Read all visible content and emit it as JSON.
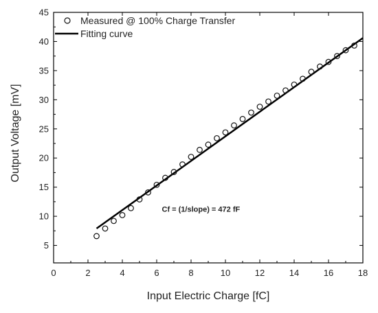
{
  "chart_data": {
    "type": "scatter",
    "xlabel": "Input Electric Charge [fC]",
    "ylabel": "Output Voltage [mV]",
    "xlim": [
      0,
      18
    ],
    "ylim": [
      2,
      45
    ],
    "xticks": [
      0,
      2,
      4,
      6,
      8,
      10,
      12,
      14,
      16,
      18
    ],
    "yticks": [
      5,
      10,
      15,
      20,
      25,
      30,
      35,
      40,
      45
    ],
    "grid": false,
    "legend_position": "top-left",
    "series": [
      {
        "name": "Measured @ 100% Charge Transfer",
        "marker": "open-circle",
        "x": [
          2.5,
          3.0,
          3.5,
          4.0,
          4.5,
          5.0,
          5.5,
          6.0,
          6.5,
          7.0,
          7.5,
          8.0,
          8.5,
          9.0,
          9.5,
          10.0,
          10.5,
          11.0,
          11.5,
          12.0,
          12.5,
          13.0,
          13.5,
          14.0,
          14.5,
          15.0,
          15.5,
          16.0,
          16.5,
          17.0,
          17.5
        ],
        "y": [
          6.6,
          7.9,
          9.2,
          10.2,
          11.4,
          12.9,
          14.1,
          15.4,
          16.6,
          17.6,
          18.9,
          20.2,
          21.4,
          22.3,
          23.4,
          24.4,
          25.6,
          26.7,
          27.8,
          28.8,
          29.7,
          30.7,
          31.6,
          32.6,
          33.6,
          34.8,
          35.7,
          36.5,
          37.5,
          38.5,
          39.3
        ]
      },
      {
        "name": "Fitting curve",
        "kind": "line",
        "x": [
          2.5,
          18.0
        ],
        "y": [
          7.9,
          40.6
        ]
      }
    ],
    "annotations": [
      {
        "text": "Cf = (1/slope) = 472 fF",
        "x": 6.3,
        "y": 10.8
      }
    ],
    "colors": {
      "marker": "#111111",
      "line": "#000000",
      "axis": "#000000"
    }
  }
}
